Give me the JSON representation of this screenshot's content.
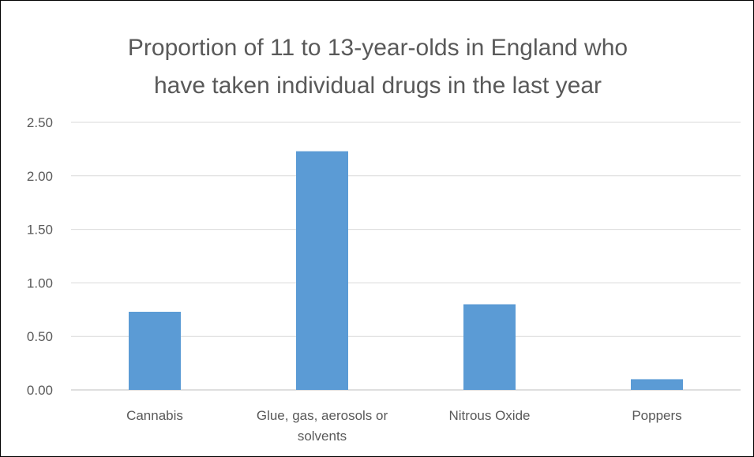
{
  "chart_data": {
    "type": "bar",
    "title": "Proportion of 11 to 13-year-olds in England who\nhave taken individual drugs in the last year",
    "categories": [
      "Cannabis",
      "Glue, gas, aerosols or solvents",
      "Nitrous Oxide",
      "Poppers"
    ],
    "category_lines": [
      [
        "Cannabis"
      ],
      [
        "Glue, gas, aerosols or",
        "solvents"
      ],
      [
        "Nitrous Oxide"
      ],
      [
        "Poppers"
      ]
    ],
    "values": [
      0.73,
      2.23,
      0.8,
      0.1
    ],
    "y_ticks": [
      "0.00",
      "0.50",
      "1.00",
      "1.50",
      "2.00",
      "2.50"
    ],
    "ylim": [
      0,
      2.5
    ],
    "grid": true,
    "legend": "none",
    "bar_color": "#5b9bd5",
    "grid_color": "#d9d9d9",
    "text_color": "#595959"
  }
}
